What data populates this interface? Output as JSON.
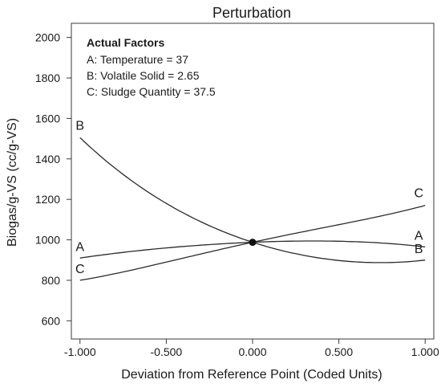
{
  "chart_data": {
    "type": "line",
    "title": "Perturbation",
    "xlabel": "Deviation from Reference Point (Coded Units)",
    "ylabel": "Biogas/g-VS (cc/g-VS)",
    "xlim": [
      -1.05,
      1.05
    ],
    "ylim": [
      510,
      2070
    ],
    "x_ticks": [
      -1.0,
      -0.5,
      0.0,
      0.5,
      1.0
    ],
    "x_tick_labels": [
      "-1.000",
      "-0.500",
      "0.000",
      "0.500",
      "1.000"
    ],
    "y_ticks": [
      600,
      800,
      1000,
      1200,
      1400,
      1600,
      1800,
      2000
    ],
    "y_tick_labels": [
      "600",
      "800",
      "1000",
      "1200",
      "1400",
      "1600",
      "1800",
      "2000"
    ],
    "grid": false,
    "legend": "none",
    "annotation": {
      "heading": "Actual Factors",
      "lines": [
        "A: Temperature = 37",
        "B: Volatile Solid = 2.65",
        "C: Sludge Quantity = 37.5"
      ]
    },
    "reference_point": {
      "x": 0.0,
      "y": 988
    },
    "series": [
      {
        "name": "A",
        "x": [
          -1.0,
          -0.5,
          0.0,
          0.5,
          1.0
        ],
        "y": [
          910,
          960,
          988,
          993,
          965
        ],
        "label_y_start": 945,
        "label_y_end": 1000
      },
      {
        "name": "B",
        "x": [
          -1.0,
          -0.5,
          0.0,
          0.5,
          1.0
        ],
        "y": [
          1505,
          1180,
          988,
          898,
          900
        ],
        "label_y_start": 1545,
        "label_y_end": 935
      },
      {
        "name": "C",
        "x": [
          -1.0,
          -0.5,
          0.0,
          0.5,
          1.0
        ],
        "y": [
          800,
          890,
          988,
          1075,
          1170
        ],
        "label_y_start": 835,
        "label_y_end": 1210
      }
    ]
  }
}
